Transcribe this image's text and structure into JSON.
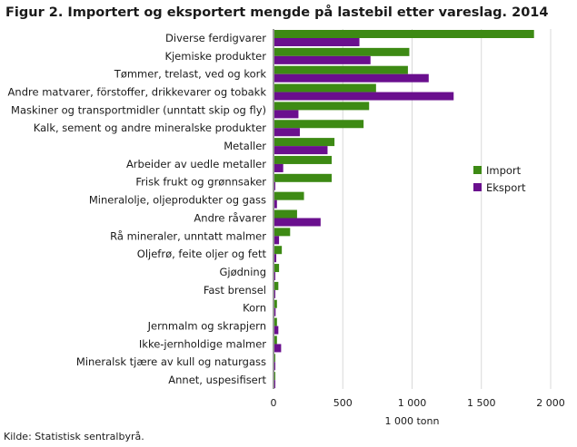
{
  "title": "Figur 2. Importert og eksportert mengde på lastebil etter vareslag. 2014",
  "source": "Kilde: Statistisk sentralbyrå.",
  "colors": {
    "import": "#3d8a14",
    "eksport": "#6a0f8e",
    "grid": "#d9d9d9",
    "axis": "#333333"
  },
  "chart_data": {
    "type": "bar",
    "orientation": "horizontal",
    "title": "Figur 2. Importert og eksportert mengde på lastebil etter vareslag. 2014",
    "xlabel": "1 000 tonn",
    "ylabel": "",
    "xlim": [
      0,
      2000
    ],
    "xticks": [
      0,
      500,
      1000,
      1500,
      2000
    ],
    "xtick_labels": [
      "0",
      "500",
      "1 000",
      "1 500",
      "2 000"
    ],
    "grid": true,
    "legend_position": "right",
    "categories": [
      "Diverse ferdigvarer",
      "Kjemiske produkter",
      "Tømmer, trelast, ved og kork",
      "Andre matvarer, förstoffer, drikkevarer og tobakk",
      "Maskiner og transportmidler (unntatt skip og fly)",
      "Kalk, sement og andre mineralske produkter",
      "Metaller",
      "Arbeider av uedle metaller",
      "Frisk frukt og grønnsaker",
      "Mineralolje, oljeprodukter og gass",
      "Andre råvarer",
      "Rå mineraler, unntatt malmer",
      "Oljefrø, feite oljer og fett",
      "Gjødning",
      "Fast brensel",
      "Korn",
      "Jernmalm og skrapjern",
      "Ikke-jernholdige malmer",
      "Mineralsk tjære av kull og naturgass",
      "Annet, uspesifisert"
    ],
    "series": [
      {
        "name": "Import",
        "values": [
          1880,
          980,
          970,
          740,
          690,
          650,
          440,
          420,
          420,
          220,
          170,
          120,
          60,
          40,
          35,
          25,
          25,
          25,
          5,
          5
        ]
      },
      {
        "name": "Eksport",
        "values": [
          620,
          700,
          1120,
          1300,
          180,
          190,
          390,
          70,
          10,
          25,
          340,
          40,
          20,
          10,
          10,
          15,
          35,
          55,
          5,
          5
        ]
      }
    ]
  }
}
